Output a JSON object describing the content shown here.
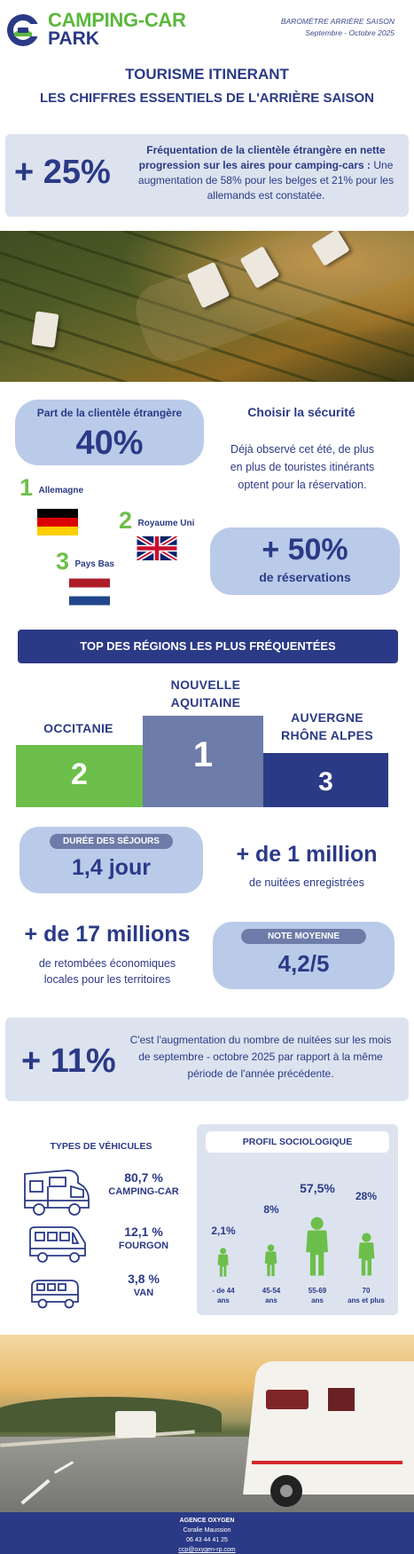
{
  "header": {
    "logo_line1": "CAMPING-CAR",
    "logo_line2": "PARK",
    "barometer_line1": "BAROMÈTRE ARRIÈRE SAISON",
    "barometer_line2": "Septembre - Octobre 2025"
  },
  "title": {
    "line1": "TOURISME ITINERANT",
    "line2": "LES CHIFFRES ESSENTIELS DE L'ARRIÈRE SAISON"
  },
  "foreign_growth": {
    "value": "+ 25%",
    "headline": "Fréquentation de la clientèle étrangère en nette progression sur les aires pour camping-cars :",
    "detail": "Une augmentation de 58% pour les belges et 21% pour les allemands est constatée."
  },
  "foreign_share": {
    "label": "Part de la clientèle étrangère",
    "value": "40%",
    "ranking": [
      {
        "rank": "1",
        "country": "Allemagne"
      },
      {
        "rank": "2",
        "country": "Royaume Uni"
      },
      {
        "rank": "3",
        "country": "Pays Bas"
      }
    ]
  },
  "security": {
    "title": "Choisir la sécurité",
    "text": "Déjà observé cet été, de plus en plus de touristes itinérants optent pour la réservation.",
    "value": "+ 50%",
    "value_label": "de réservations"
  },
  "regions": {
    "banner": "TOP DES RÉGIONS LES PLUS FRÉQUENTÉES",
    "podium": [
      {
        "rank": "2",
        "name": "OCCITANIE"
      },
      {
        "rank": "1",
        "name_line1": "NOUVELLE",
        "name_line2": "AQUITAINE"
      },
      {
        "rank": "3",
        "name_line1": "AUVERGNE",
        "name_line2": "RHÔNE ALPES"
      }
    ]
  },
  "stay": {
    "tag": "DURÉE DES SÉJOURS",
    "value": "1,4 jour"
  },
  "nights": {
    "value": "+ de 1 million",
    "label": "de nuitées enregistrées"
  },
  "economy": {
    "value": "+ de 17 millions",
    "label": "de retombées économiques locales pour les territoires"
  },
  "rating": {
    "tag": "NOTE MOYENNE",
    "value": "4,2/5"
  },
  "nights_growth": {
    "value": "+ 11%",
    "text": "C'est l'augmentation du nombre de nuitées sur les mois de septembre - octobre 2025 par rapport à la même période de l'année précédente."
  },
  "vehicles": {
    "title": "TYPES DE VÉHICULES",
    "items": [
      {
        "percent": "80,7 %",
        "label": "CAMPING-CAR",
        "icon": "motorhome-icon"
      },
      {
        "percent": "12,1 %",
        "label": "FOURGON",
        "icon": "van-icon"
      },
      {
        "percent": "3,8 %",
        "label": "VAN",
        "icon": "combi-van-icon"
      }
    ]
  },
  "profile": {
    "title": "PROFIL SOCIOLOGIQUE",
    "groups": [
      {
        "percent": "2,1%",
        "age_line1": "- de 44",
        "age_line2": "ans",
        "value": 2.1
      },
      {
        "percent": "8%",
        "age_line1": "45-54",
        "age_line2": "ans",
        "value": 8
      },
      {
        "percent": "57,5%",
        "age_line1": "55-69",
        "age_line2": "ans",
        "value": 57.5
      },
      {
        "percent": "28%",
        "age_line1": "70",
        "age_line2": "ans et plus",
        "value": 28
      }
    ]
  },
  "footer": {
    "agency": "AGENCE OXYGEN",
    "contact": "Coralie Maussion",
    "phone": "06 43 44 41 25",
    "email": "ccp@oxygen-rp.com"
  },
  "colors": {
    "navy": "#2b3a86",
    "green": "#6cbf4a",
    "slate": "#6d7ca8",
    "light_blue": "#b9cbe9",
    "pale_blue": "#dce3ef"
  }
}
